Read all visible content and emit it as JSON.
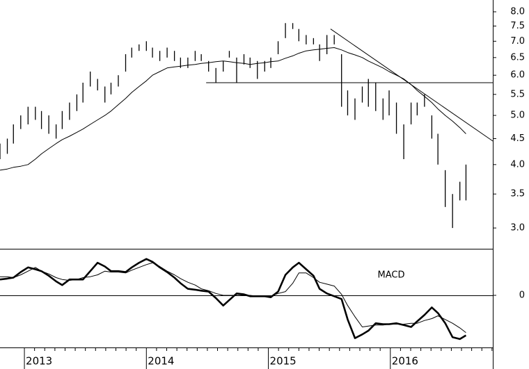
{
  "chart_data": [
    {
      "type": "range",
      "log": true,
      "x": [
        2012.8,
        2012.86,
        2012.91,
        2012.97,
        2013.03,
        2013.09,
        2013.14,
        2013.2,
        2013.26,
        2013.31,
        2013.37,
        2013.43,
        2013.48,
        2013.54,
        2013.6,
        2013.66,
        2013.71,
        2013.77,
        2013.83,
        2013.88,
        2013.94,
        2014.0,
        2014.05,
        2014.11,
        2014.17,
        2014.23,
        2014.28,
        2014.34,
        2014.4,
        2014.45,
        2014.51,
        2014.57,
        2014.63,
        2014.68,
        2014.74,
        2014.8,
        2014.85,
        2014.91,
        2014.97,
        2015.02,
        2015.08,
        2015.14,
        2015.2,
        2015.25,
        2015.31,
        2015.37,
        2015.42,
        2015.48,
        2015.54,
        2015.6,
        2015.65,
        2015.71,
        2015.77,
        2015.82,
        2015.88,
        2015.94,
        2015.99,
        2016.05,
        2016.11,
        2016.17,
        2016.22,
        2016.28,
        2016.34,
        2016.39,
        2016.45,
        2016.51,
        2016.57,
        2016.62
      ],
      "high": [
        4.4,
        4.5,
        4.8,
        5.0,
        5.2,
        5.2,
        5.1,
        5.0,
        4.8,
        5.1,
        5.3,
        5.5,
        5.8,
        6.1,
        5.9,
        5.7,
        5.8,
        6.0,
        6.6,
        6.8,
        6.9,
        7.0,
        6.8,
        6.7,
        6.8,
        6.7,
        6.5,
        6.5,
        6.7,
        6.6,
        6.4,
        6.2,
        6.4,
        6.7,
        6.5,
        6.6,
        6.5,
        6.4,
        6.4,
        6.5,
        7.0,
        7.6,
        7.6,
        7.4,
        7.2,
        7.1,
        6.9,
        7.2,
        7.2,
        6.6,
        5.6,
        5.4,
        5.7,
        5.9,
        5.8,
        5.4,
        5.6,
        5.3,
        4.8,
        5.3,
        5.3,
        5.5,
        5.0,
        4.6,
        3.9,
        3.5,
        3.7,
        4.0
      ],
      "low": [
        4.1,
        4.2,
        4.4,
        4.7,
        4.8,
        4.9,
        4.7,
        4.6,
        4.5,
        4.7,
        4.9,
        5.1,
        5.3,
        5.7,
        5.6,
        5.3,
        5.5,
        5.7,
        6.1,
        6.5,
        6.7,
        6.7,
        6.5,
        6.4,
        6.5,
        6.4,
        6.2,
        6.2,
        6.4,
        6.4,
        6.1,
        5.8,
        6.1,
        6.5,
        5.8,
        6.3,
        6.2,
        5.9,
        6.1,
        6.2,
        6.6,
        7.1,
        7.4,
        7.0,
        6.9,
        6.9,
        6.4,
        6.6,
        6.9,
        5.2,
        5.0,
        4.9,
        5.3,
        5.2,
        5.1,
        4.9,
        5.0,
        4.6,
        4.1,
        4.8,
        5.0,
        5.2,
        4.5,
        4.0,
        3.3,
        3.0,
        3.4,
        3.4
      ],
      "ma": [
        3.9,
        3.92,
        3.95,
        3.97,
        4.0,
        4.1,
        4.2,
        4.3,
        4.4,
        4.48,
        4.55,
        4.63,
        4.7,
        4.8,
        4.9,
        5.0,
        5.1,
        5.25,
        5.4,
        5.55,
        5.7,
        5.85,
        6.0,
        6.1,
        6.2,
        6.23,
        6.25,
        6.28,
        6.3,
        6.33,
        6.35,
        6.38,
        6.4,
        6.38,
        6.35,
        6.33,
        6.3,
        6.33,
        6.35,
        6.38,
        6.4,
        6.48,
        6.55,
        6.63,
        6.7,
        6.73,
        6.75,
        6.78,
        6.8,
        6.73,
        6.65,
        6.58,
        6.5,
        6.4,
        6.3,
        6.2,
        6.1,
        6.0,
        5.9,
        5.75,
        5.6,
        5.45,
        5.3,
        5.15,
        5.0,
        4.87,
        4.73,
        4.6
      ],
      "lines": [
        {
          "x": [
            2015.51,
            2016.84
          ],
          "values": [
            7.4,
            4.45
          ]
        },
        {
          "x": [
            2014.49,
            2016.84
          ],
          "values": [
            5.8,
            5.8
          ]
        }
      ],
      "xlim": [
        2012.8,
        2016.84
      ],
      "ylim": [
        2.73,
        8.44
      ],
      "yticks": [
        3.5,
        {
          "value": 3,
          "label": "3.0"
        },
        {
          "value": 4,
          "label": "4.0"
        },
        4.5,
        {
          "value": 5,
          "label": "5.0"
        },
        5.5,
        {
          "value": 6,
          "label": "6.0"
        },
        6.5,
        {
          "value": 7,
          "label": "7.0"
        },
        7.5,
        {
          "value": 8,
          "label": "8.0"
        }
      ],
      "color": "#000000"
    },
    {
      "type": "line",
      "label": "MACD",
      "x": [
        2012.8,
        2012.86,
        2012.91,
        2012.97,
        2013.03,
        2013.09,
        2013.14,
        2013.2,
        2013.26,
        2013.31,
        2013.37,
        2013.43,
        2013.48,
        2013.54,
        2013.6,
        2013.66,
        2013.71,
        2013.77,
        2013.83,
        2013.88,
        2013.94,
        2014.0,
        2014.05,
        2014.11,
        2014.17,
        2014.23,
        2014.28,
        2014.34,
        2014.4,
        2014.45,
        2014.51,
        2014.57,
        2014.63,
        2014.68,
        2014.74,
        2014.8,
        2014.85,
        2014.91,
        2014.97,
        2015.02,
        2015.08,
        2015.14,
        2015.2,
        2015.25,
        2015.31,
        2015.37,
        2015.42,
        2015.48,
        2015.54,
        2015.6,
        2015.65,
        2015.71,
        2015.77,
        2015.82,
        2015.88,
        2015.94,
        2015.99,
        2016.05,
        2016.11,
        2016.17,
        2016.22,
        2016.28,
        2016.34,
        2016.39,
        2016.45,
        2016.51,
        2016.57,
        2016.62
      ],
      "macd": [
        0.17,
        0.18,
        0.19,
        0.25,
        0.3,
        0.28,
        0.26,
        0.21,
        0.15,
        0.11,
        0.17,
        0.17,
        0.17,
        0.26,
        0.35,
        0.31,
        0.26,
        0.26,
        0.25,
        0.3,
        0.35,
        0.39,
        0.36,
        0.3,
        0.25,
        0.19,
        0.13,
        0.07,
        0.06,
        0.05,
        0.04,
        -0.03,
        -0.11,
        -0.05,
        0.02,
        0.01,
        -0.01,
        -0.01,
        -0.01,
        -0.02,
        0.04,
        0.22,
        0.3,
        0.35,
        0.28,
        0.21,
        0.07,
        0.02,
        -0.01,
        -0.04,
        -0.26,
        -0.46,
        -0.42,
        -0.38,
        -0.3,
        -0.31,
        -0.31,
        -0.3,
        -0.32,
        -0.34,
        -0.28,
        -0.21,
        -0.13,
        -0.19,
        -0.3,
        -0.45,
        -0.47,
        -0.43
      ],
      "signal": [
        0.2,
        0.2,
        0.19,
        0.22,
        0.26,
        0.3,
        0.26,
        0.23,
        0.19,
        0.17,
        0.16,
        0.17,
        0.19,
        0.2,
        0.22,
        0.26,
        0.25,
        0.25,
        0.24,
        0.27,
        0.3,
        0.33,
        0.35,
        0.31,
        0.26,
        0.22,
        0.18,
        0.14,
        0.11,
        0.07,
        0.05,
        0.02,
        0,
        0,
        0,
        0,
        0,
        -0.01,
        -0.01,
        -0.01,
        0.02,
        0.04,
        0.13,
        0.24,
        0.24,
        0.19,
        0.14,
        0.12,
        0.1,
        0.01,
        -0.11,
        -0.23,
        -0.34,
        -0.33,
        -0.32,
        -0.32,
        -0.31,
        -0.31,
        -0.31,
        -0.3,
        -0.3,
        -0.27,
        -0.25,
        -0.22,
        -0.26,
        -0.3,
        -0.35,
        -0.4
      ],
      "xlim": [
        2012.8,
        2016.84
      ],
      "ylim": [
        -0.56,
        0.5
      ],
      "yticks": [
        0
      ],
      "xticks": [
        2013,
        2014,
        2015,
        2016
      ],
      "color": "#000000"
    }
  ]
}
